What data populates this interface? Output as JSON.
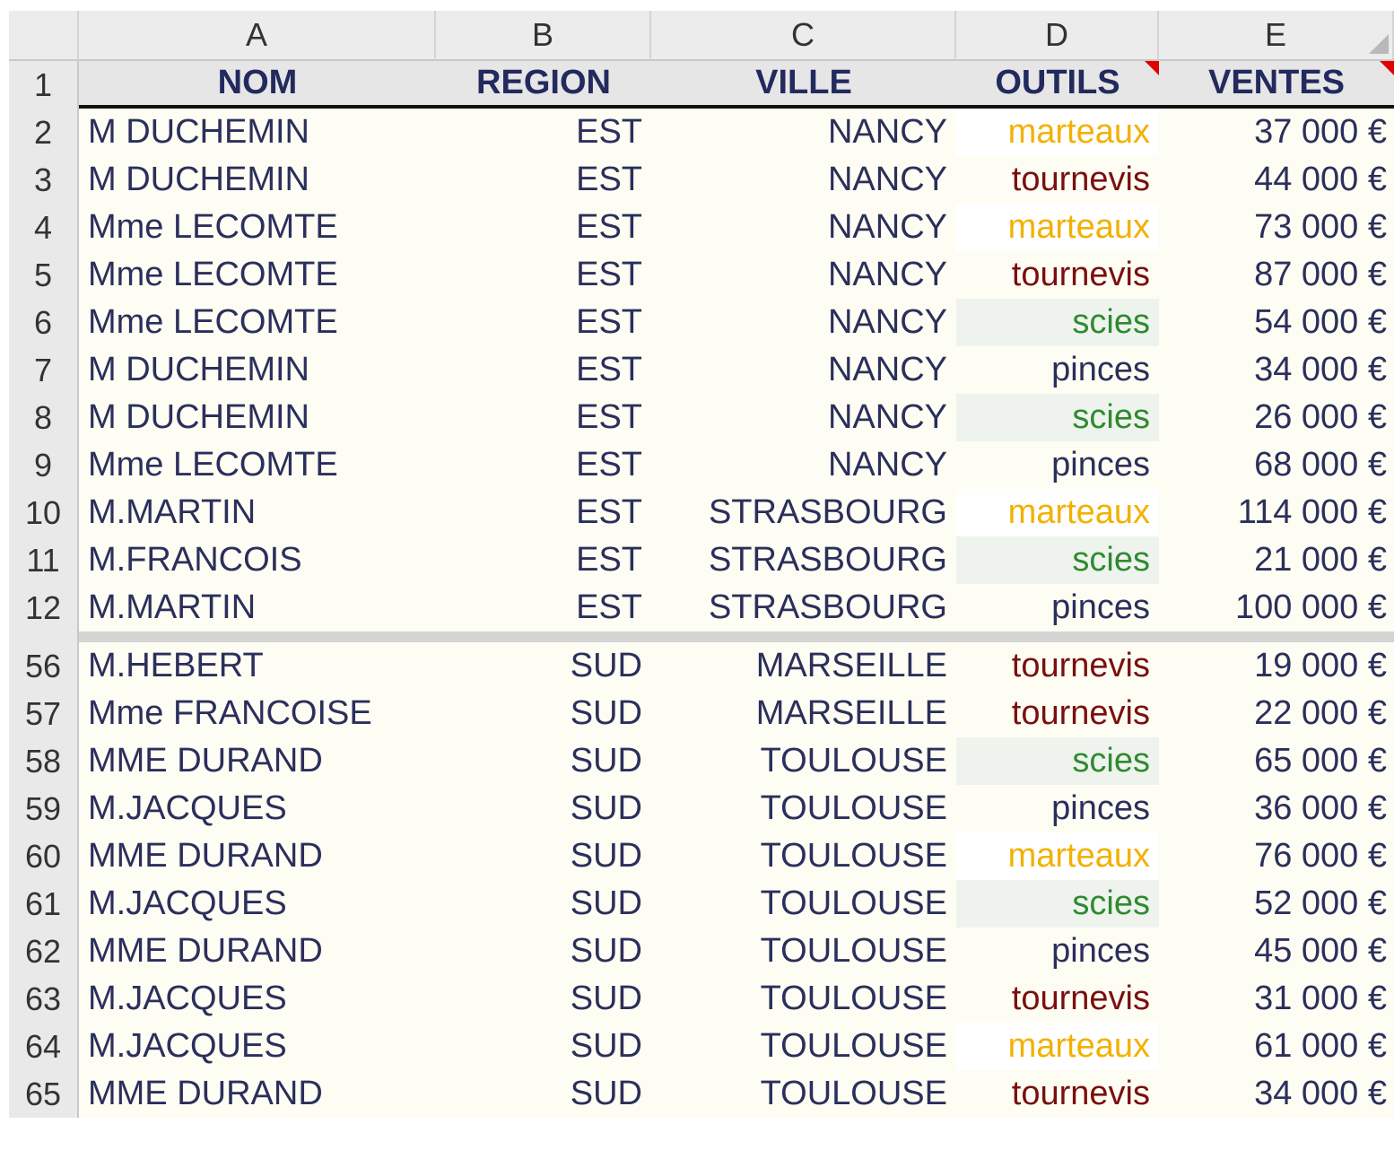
{
  "columns": [
    "A",
    "B",
    "C",
    "D",
    "E"
  ],
  "header": {
    "row_number": "1",
    "nom": "NOM",
    "region": "REGION",
    "ville": "VILLE",
    "outils": "OUTILS",
    "ventes": "VENTES"
  },
  "colors": {
    "marteaux": "#f2b100",
    "tournevis": "#7a0f0f",
    "scies": "#2f8a2f",
    "pinces": "#2b2f5c",
    "comment": "#e00000"
  },
  "rows_top": [
    {
      "n": "2",
      "nom": "M DUCHEMIN",
      "region": "EST",
      "ville": "NANCY",
      "outil": "marteaux",
      "vente": "37 000 €"
    },
    {
      "n": "3",
      "nom": "M DUCHEMIN",
      "region": "EST",
      "ville": "NANCY",
      "outil": "tournevis",
      "vente": "44 000 €"
    },
    {
      "n": "4",
      "nom": "Mme LECOMTE",
      "region": "EST",
      "ville": "NANCY",
      "outil": "marteaux",
      "vente": "73 000 €"
    },
    {
      "n": "5",
      "nom": "Mme LECOMTE",
      "region": "EST",
      "ville": "NANCY",
      "outil": "tournevis",
      "vente": "87 000 €"
    },
    {
      "n": "6",
      "nom": "Mme LECOMTE",
      "region": "EST",
      "ville": "NANCY",
      "outil": "scies",
      "vente": "54 000 €"
    },
    {
      "n": "7",
      "nom": "M DUCHEMIN",
      "region": "EST",
      "ville": "NANCY",
      "outil": "pinces",
      "vente": "34 000 €"
    },
    {
      "n": "8",
      "nom": "M DUCHEMIN",
      "region": "EST",
      "ville": "NANCY",
      "outil": "scies",
      "vente": "26 000 €"
    },
    {
      "n": "9",
      "nom": "Mme LECOMTE",
      "region": "EST",
      "ville": "NANCY",
      "outil": "pinces",
      "vente": "68 000 €"
    },
    {
      "n": "10",
      "nom": "M.MARTIN",
      "region": "EST",
      "ville": "STRASBOURG",
      "outil": "marteaux",
      "vente": "114 000 €"
    },
    {
      "n": "11",
      "nom": "M.FRANCOIS",
      "region": "EST",
      "ville": "STRASBOURG",
      "outil": "scies",
      "vente": "21 000 €"
    },
    {
      "n": "12",
      "nom": "M.MARTIN",
      "region": "EST",
      "ville": "STRASBOURG",
      "outil": "pinces",
      "vente": "100 000 €"
    }
  ],
  "rows_bottom": [
    {
      "n": "56",
      "nom": "M.HEBERT",
      "region": "SUD",
      "ville": "MARSEILLE",
      "outil": "tournevis",
      "vente": "19 000 €"
    },
    {
      "n": "57",
      "nom": "Mme FRANCOISE",
      "region": "SUD",
      "ville": "MARSEILLE",
      "outil": "tournevis",
      "vente": "22 000 €"
    },
    {
      "n": "58",
      "nom": "MME DURAND",
      "region": "SUD",
      "ville": "TOULOUSE",
      "outil": "scies",
      "vente": "65 000 €"
    },
    {
      "n": "59",
      "nom": "M.JACQUES",
      "region": "SUD",
      "ville": "TOULOUSE",
      "outil": "pinces",
      "vente": "36 000 €"
    },
    {
      "n": "60",
      "nom": "MME DURAND",
      "region": "SUD",
      "ville": "TOULOUSE",
      "outil": "marteaux",
      "vente": "76 000 €"
    },
    {
      "n": "61",
      "nom": "M.JACQUES",
      "region": "SUD",
      "ville": "TOULOUSE",
      "outil": "scies",
      "vente": "52 000 €"
    },
    {
      "n": "62",
      "nom": "MME DURAND",
      "region": "SUD",
      "ville": "TOULOUSE",
      "outil": "pinces",
      "vente": "45 000 €"
    },
    {
      "n": "63",
      "nom": "M.JACQUES",
      "region": "SUD",
      "ville": "TOULOUSE",
      "outil": "tournevis",
      "vente": "31 000 €"
    },
    {
      "n": "64",
      "nom": "M.JACQUES",
      "region": "SUD",
      "ville": "TOULOUSE",
      "outil": "marteaux",
      "vente": "61 000 €"
    },
    {
      "n": "65",
      "nom": "MME DURAND",
      "region": "SUD",
      "ville": "TOULOUSE",
      "outil": "tournevis",
      "vente": "34 000 €"
    }
  ]
}
